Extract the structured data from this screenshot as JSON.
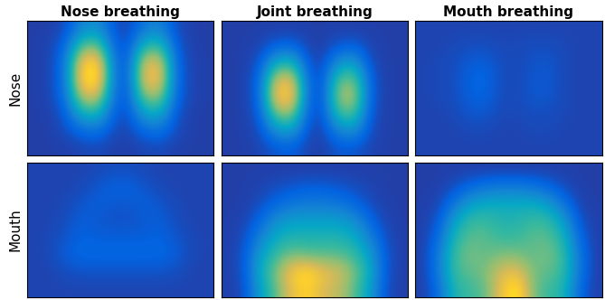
{
  "chart_data": {
    "type": "heatmap",
    "columns": [
      "Nose breathing",
      "Joint breathing",
      "Mouth breathing"
    ],
    "rows": [
      "Nose",
      "Mouth"
    ],
    "tick_labels": false,
    "color_range": [
      0,
      1
    ],
    "cells": [
      [
        [
          [
            0.05,
            0.05,
            0.08,
            0.25,
            0.3,
            0.1,
            0.06,
            0.2,
            0.25,
            0.08,
            0.05,
            0.05
          ],
          [
            0.05,
            0.06,
            0.15,
            0.55,
            0.6,
            0.15,
            0.08,
            0.45,
            0.5,
            0.12,
            0.05,
            0.05
          ],
          [
            0.05,
            0.06,
            0.2,
            0.85,
            0.95,
            0.2,
            0.1,
            0.75,
            0.8,
            0.15,
            0.06,
            0.05
          ],
          [
            0.05,
            0.06,
            0.2,
            0.9,
            1.0,
            0.2,
            0.1,
            0.8,
            0.85,
            0.15,
            0.06,
            0.05
          ],
          [
            0.05,
            0.06,
            0.18,
            0.7,
            0.75,
            0.18,
            0.1,
            0.6,
            0.65,
            0.15,
            0.06,
            0.05
          ],
          [
            0.05,
            0.05,
            0.12,
            0.4,
            0.45,
            0.12,
            0.08,
            0.35,
            0.4,
            0.1,
            0.05,
            0.05
          ],
          [
            0.05,
            0.05,
            0.08,
            0.15,
            0.18,
            0.08,
            0.06,
            0.15,
            0.18,
            0.08,
            0.05,
            0.05
          ],
          [
            0.05,
            0.05,
            0.05,
            0.06,
            0.07,
            0.05,
            0.05,
            0.06,
            0.07,
            0.05,
            0.05,
            0.05
          ]
        ],
        [
          [
            0.05,
            0.05,
            0.05,
            0.05,
            0.05,
            0.05,
            0.05,
            0.05,
            0.05,
            0.05,
            0.05,
            0.05
          ],
          [
            0.05,
            0.05,
            0.06,
            0.12,
            0.14,
            0.06,
            0.05,
            0.1,
            0.12,
            0.06,
            0.05,
            0.05
          ],
          [
            0.05,
            0.05,
            0.1,
            0.4,
            0.45,
            0.1,
            0.06,
            0.3,
            0.35,
            0.08,
            0.05,
            0.05
          ],
          [
            0.05,
            0.05,
            0.15,
            0.75,
            0.8,
            0.15,
            0.08,
            0.55,
            0.6,
            0.12,
            0.05,
            0.05
          ],
          [
            0.05,
            0.05,
            0.15,
            0.85,
            0.9,
            0.15,
            0.08,
            0.65,
            0.7,
            0.12,
            0.05,
            0.05
          ],
          [
            0.05,
            0.05,
            0.12,
            0.6,
            0.65,
            0.12,
            0.08,
            0.5,
            0.55,
            0.1,
            0.05,
            0.05
          ],
          [
            0.05,
            0.05,
            0.08,
            0.3,
            0.35,
            0.08,
            0.06,
            0.25,
            0.3,
            0.08,
            0.05,
            0.05
          ],
          [
            0.05,
            0.05,
            0.06,
            0.1,
            0.12,
            0.06,
            0.05,
            0.1,
            0.1,
            0.06,
            0.05,
            0.05
          ]
        ],
        [
          [
            0.06,
            0.06,
            0.06,
            0.06,
            0.06,
            0.06,
            0.06,
            0.06,
            0.06,
            0.06,
            0.06,
            0.06
          ],
          [
            0.06,
            0.06,
            0.07,
            0.08,
            0.08,
            0.07,
            0.07,
            0.08,
            0.08,
            0.07,
            0.06,
            0.06
          ],
          [
            0.06,
            0.07,
            0.08,
            0.11,
            0.12,
            0.08,
            0.07,
            0.09,
            0.1,
            0.07,
            0.06,
            0.06
          ],
          [
            0.06,
            0.07,
            0.08,
            0.13,
            0.14,
            0.08,
            0.07,
            0.1,
            0.11,
            0.07,
            0.06,
            0.06
          ],
          [
            0.06,
            0.07,
            0.08,
            0.12,
            0.13,
            0.08,
            0.07,
            0.1,
            0.1,
            0.07,
            0.06,
            0.06
          ],
          [
            0.06,
            0.06,
            0.07,
            0.1,
            0.1,
            0.07,
            0.07,
            0.08,
            0.08,
            0.07,
            0.06,
            0.06
          ],
          [
            0.06,
            0.06,
            0.06,
            0.07,
            0.07,
            0.06,
            0.06,
            0.07,
            0.07,
            0.06,
            0.06,
            0.06
          ],
          [
            0.06,
            0.06,
            0.06,
            0.06,
            0.06,
            0.06,
            0.06,
            0.06,
            0.06,
            0.06,
            0.06,
            0.06
          ]
        ]
      ],
      [
        [
          [
            0.06,
            0.06,
            0.06,
            0.06,
            0.07,
            0.08,
            0.08,
            0.07,
            0.06,
            0.06,
            0.06,
            0.06
          ],
          [
            0.06,
            0.06,
            0.06,
            0.07,
            0.1,
            0.13,
            0.13,
            0.1,
            0.07,
            0.06,
            0.06,
            0.06
          ],
          [
            0.06,
            0.06,
            0.07,
            0.1,
            0.12,
            0.1,
            0.1,
            0.12,
            0.1,
            0.07,
            0.06,
            0.06
          ],
          [
            0.06,
            0.06,
            0.08,
            0.12,
            0.1,
            0.09,
            0.09,
            0.1,
            0.12,
            0.08,
            0.06,
            0.06
          ],
          [
            0.06,
            0.07,
            0.1,
            0.13,
            0.12,
            0.12,
            0.12,
            0.12,
            0.13,
            0.1,
            0.07,
            0.06
          ],
          [
            0.06,
            0.07,
            0.12,
            0.14,
            0.14,
            0.14,
            0.14,
            0.14,
            0.14,
            0.12,
            0.07,
            0.06
          ],
          [
            0.06,
            0.06,
            0.08,
            0.09,
            0.09,
            0.09,
            0.09,
            0.09,
            0.09,
            0.08,
            0.06,
            0.06
          ],
          [
            0.06,
            0.06,
            0.06,
            0.06,
            0.06,
            0.06,
            0.06,
            0.06,
            0.06,
            0.06,
            0.06,
            0.06
          ]
        ],
        [
          [
            0.05,
            0.05,
            0.05,
            0.05,
            0.05,
            0.05,
            0.05,
            0.05,
            0.05,
            0.05,
            0.05,
            0.05
          ],
          [
            0.05,
            0.05,
            0.06,
            0.08,
            0.1,
            0.12,
            0.12,
            0.1,
            0.08,
            0.06,
            0.05,
            0.05
          ],
          [
            0.05,
            0.05,
            0.08,
            0.15,
            0.2,
            0.22,
            0.22,
            0.2,
            0.15,
            0.08,
            0.05,
            0.05
          ],
          [
            0.05,
            0.06,
            0.15,
            0.3,
            0.35,
            0.35,
            0.35,
            0.35,
            0.3,
            0.15,
            0.06,
            0.05
          ],
          [
            0.05,
            0.08,
            0.25,
            0.4,
            0.45,
            0.45,
            0.45,
            0.45,
            0.4,
            0.25,
            0.08,
            0.05
          ],
          [
            0.05,
            0.1,
            0.35,
            0.5,
            0.6,
            0.55,
            0.55,
            0.55,
            0.5,
            0.35,
            0.1,
            0.05
          ],
          [
            0.05,
            0.1,
            0.4,
            0.6,
            0.85,
            0.95,
            0.8,
            0.75,
            0.6,
            0.4,
            0.1,
            0.05
          ],
          [
            0.05,
            0.08,
            0.35,
            0.55,
            0.8,
            0.9,
            0.75,
            0.7,
            0.55,
            0.35,
            0.08,
            0.05
          ]
        ],
        [
          [
            0.05,
            0.05,
            0.05,
            0.05,
            0.05,
            0.05,
            0.05,
            0.05,
            0.05,
            0.05,
            0.05,
            0.05
          ],
          [
            0.05,
            0.05,
            0.08,
            0.15,
            0.2,
            0.22,
            0.22,
            0.2,
            0.15,
            0.08,
            0.05,
            0.05
          ],
          [
            0.05,
            0.06,
            0.2,
            0.35,
            0.4,
            0.4,
            0.4,
            0.4,
            0.35,
            0.2,
            0.06,
            0.05
          ],
          [
            0.05,
            0.1,
            0.35,
            0.5,
            0.5,
            0.45,
            0.45,
            0.5,
            0.5,
            0.35,
            0.1,
            0.05
          ],
          [
            0.05,
            0.15,
            0.45,
            0.55,
            0.55,
            0.5,
            0.5,
            0.55,
            0.55,
            0.45,
            0.15,
            0.05
          ],
          [
            0.05,
            0.2,
            0.5,
            0.6,
            0.55,
            0.6,
            0.6,
            0.55,
            0.6,
            0.5,
            0.2,
            0.05
          ],
          [
            0.05,
            0.2,
            0.5,
            0.55,
            0.6,
            0.75,
            0.8,
            0.6,
            0.55,
            0.5,
            0.2,
            0.05
          ],
          [
            0.05,
            0.15,
            0.45,
            0.5,
            0.55,
            0.8,
            1.0,
            0.6,
            0.5,
            0.45,
            0.15,
            0.05
          ]
        ]
      ]
    ]
  }
}
